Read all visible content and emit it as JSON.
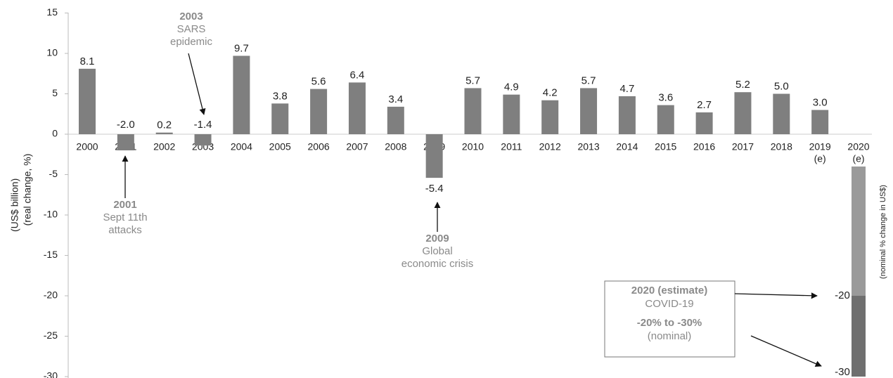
{
  "chart_data": {
    "type": "bar",
    "y_label": "(real change, %)",
    "y_label_cut": "(US$ billion)",
    "y2_label": "(nominal % change in US$)",
    "categories": [
      "2000",
      "2001",
      "2002",
      "2003",
      "2004",
      "2005",
      "2006",
      "2007",
      "2008",
      "2009",
      "2010",
      "2011",
      "2012",
      "2013",
      "2014",
      "2015",
      "2016",
      "2017",
      "2018",
      "2019",
      "2020"
    ],
    "category_notes": [
      null,
      null,
      null,
      null,
      null,
      null,
      null,
      null,
      null,
      null,
      null,
      null,
      null,
      null,
      null,
      null,
      null,
      null,
      null,
      "(e)",
      "(e)"
    ],
    "values": [
      8.1,
      -2.0,
      0.2,
      -1.4,
      9.7,
      3.8,
      5.6,
      6.4,
      3.4,
      -5.4,
      5.7,
      4.9,
      4.2,
      5.7,
      4.7,
      3.6,
      2.7,
      5.2,
      5.0,
      3.0,
      null
    ],
    "value_labels": [
      "8.1",
      "-2.0",
      "0.2",
      "-1.4",
      "9.7",
      "3.8",
      "5.6",
      "6.4",
      "3.4",
      "-5.4",
      "5.7",
      "4.9",
      "4.2",
      "5.7",
      "4.7",
      "3.6",
      "2.7",
      "5.2",
      "5.0",
      "3.0",
      null
    ],
    "color": "#7f7f7f",
    "ylim": [
      -30,
      15
    ],
    "yticks": [
      -30,
      -25,
      -20,
      -15,
      -10,
      -5,
      0,
      5,
      10,
      15
    ],
    "estimate": {
      "values": [
        -20,
        -30
      ],
      "labels": [
        "-20",
        "-30"
      ],
      "colors": [
        "#9a9a9a",
        "#6f6f6f"
      ]
    },
    "annotations": [
      {
        "title": "2001",
        "lines": [
          "Sept 11th",
          "attacks"
        ]
      },
      {
        "title": "2003",
        "lines": [
          "SARS",
          "epidemic"
        ]
      },
      {
        "title": "2009",
        "lines": [
          "Global",
          "economic crisis"
        ]
      }
    ],
    "box": {
      "title": "2020 (estimate)",
      "subtitle": "COVID-19",
      "range": "-20% to -30%",
      "note": "(nominal)"
    }
  }
}
